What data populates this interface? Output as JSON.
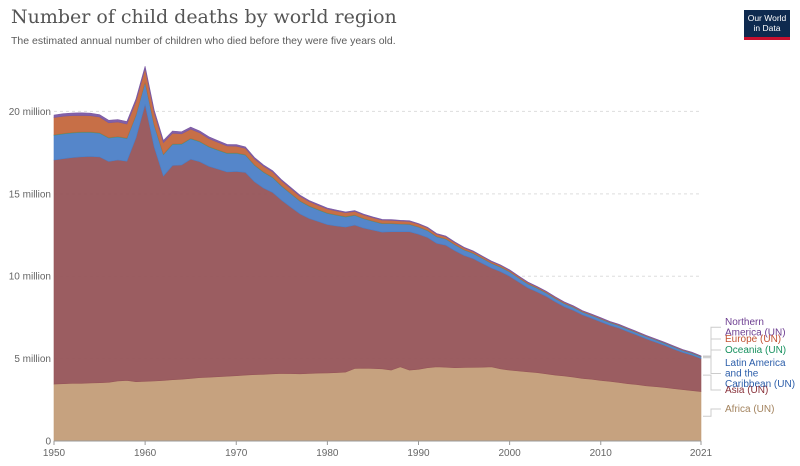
{
  "header": {
    "title": "Number of child deaths by world region",
    "subtitle": "The estimated annual number of children who died before they were five years old.",
    "logo_line1": "Our World",
    "logo_line2": "in Data"
  },
  "chart_data": {
    "type": "area",
    "stacked": true,
    "x": [
      1950,
      1951,
      1952,
      1953,
      1954,
      1955,
      1956,
      1957,
      1958,
      1959,
      1960,
      1961,
      1962,
      1963,
      1964,
      1965,
      1966,
      1967,
      1968,
      1969,
      1970,
      1971,
      1972,
      1973,
      1974,
      1975,
      1976,
      1977,
      1978,
      1979,
      1980,
      1981,
      1982,
      1983,
      1984,
      1985,
      1986,
      1987,
      1988,
      1989,
      1990,
      1991,
      1992,
      1993,
      1994,
      1995,
      1996,
      1997,
      1998,
      1999,
      2000,
      2001,
      2002,
      2003,
      2004,
      2005,
      2006,
      2007,
      2008,
      2009,
      2010,
      2011,
      2012,
      2013,
      2014,
      2015,
      2016,
      2017,
      2018,
      2019,
      2020,
      2021
    ],
    "xticks": [
      1950,
      1960,
      1970,
      1980,
      1990,
      2000,
      2010,
      2021
    ],
    "yticks": [
      0,
      5000000,
      10000000,
      15000000,
      20000000
    ],
    "ytick_labels": [
      "0",
      "5 million",
      "10 million",
      "15 million",
      "20 million"
    ],
    "xlim": [
      1950,
      2021
    ],
    "ylim": [
      0,
      23000000
    ],
    "grid": "horizontal-dashed",
    "legend_placement": "right",
    "series": [
      {
        "name": "Africa (UN)",
        "color": "#c39d78",
        "label_color": "#a3835e",
        "values": [
          3450000,
          3480000,
          3500000,
          3500000,
          3520000,
          3540000,
          3560000,
          3650000,
          3680000,
          3600000,
          3620000,
          3640000,
          3680000,
          3720000,
          3750000,
          3800000,
          3850000,
          3870000,
          3900000,
          3930000,
          3960000,
          4000000,
          4030000,
          4050000,
          4080000,
          4100000,
          4090000,
          4080000,
          4100000,
          4120000,
          4130000,
          4150000,
          4180000,
          4400000,
          4420000,
          4400000,
          4380000,
          4300000,
          4500000,
          4300000,
          4350000,
          4450000,
          4500000,
          4480000,
          4450000,
          4460000,
          4470000,
          4480000,
          4500000,
          4380000,
          4300000,
          4250000,
          4200000,
          4150000,
          4080000,
          4000000,
          3950000,
          3880000,
          3800000,
          3750000,
          3680000,
          3620000,
          3550000,
          3480000,
          3420000,
          3350000,
          3300000,
          3250000,
          3180000,
          3120000,
          3060000,
          3000000
        ]
      },
      {
        "name": "Asia (UN)",
        "color": "#965459",
        "label_color": "#883039",
        "values": [
          13600000,
          13650000,
          13700000,
          13750000,
          13750000,
          13700000,
          13400000,
          13400000,
          13300000,
          14800000,
          16800000,
          14200000,
          12400000,
          13000000,
          13000000,
          13300000,
          13100000,
          12800000,
          12600000,
          12400000,
          12400000,
          12300000,
          11700000,
          11300000,
          11000000,
          10500000,
          10100000,
          9700000,
          9400000,
          9200000,
          9000000,
          8900000,
          8800000,
          8700000,
          8500000,
          8400000,
          8300000,
          8400000,
          8200000,
          8400000,
          8200000,
          7900000,
          7500000,
          7400000,
          7100000,
          6800000,
          6600000,
          6300000,
          6000000,
          5900000,
          5700000,
          5400000,
          5100000,
          4900000,
          4700000,
          4450000,
          4200000,
          4050000,
          3850000,
          3700000,
          3550000,
          3400000,
          3300000,
          3150000,
          3000000,
          2850000,
          2700000,
          2550000,
          2400000,
          2250000,
          2150000,
          2000000
        ]
      },
      {
        "name": "Latin America and the Caribbean (UN)",
        "color": "#4c7fc7",
        "label_color": "#2c5eaa",
        "values": [
          1500000,
          1500000,
          1500000,
          1480000,
          1460000,
          1440000,
          1420000,
          1400000,
          1380000,
          1360000,
          1350000,
          1320000,
          1300000,
          1280000,
          1260000,
          1240000,
          1200000,
          1170000,
          1140000,
          1120000,
          1100000,
          1050000,
          1000000,
          950000,
          900000,
          850000,
          810000,
          770000,
          740000,
          700000,
          680000,
          650000,
          620000,
          590000,
          560000,
          530000,
          510000,
          490000,
          460000,
          440000,
          430000,
          410000,
          390000,
          370000,
          350000,
          330000,
          310000,
          300000,
          280000,
          270000,
          260000,
          240000,
          230000,
          220000,
          210000,
          200000,
          190000,
          180000,
          175000,
          170000,
          165000,
          160000,
          155000,
          150000,
          145000,
          140000,
          135000,
          130000,
          125000,
          120000,
          115000,
          110000
        ]
      },
      {
        "name": "Oceania (UN)",
        "color": "#3a9a7b",
        "label_color": "#18915f",
        "values": [
          30000,
          30000,
          30000,
          30000,
          30000,
          30000,
          30000,
          30000,
          30000,
          30000,
          30000,
          30000,
          30000,
          30000,
          30000,
          30000,
          30000,
          30000,
          30000,
          30000,
          30000,
          30000,
          30000,
          29000,
          29000,
          28000,
          28000,
          27000,
          27000,
          26000,
          26000,
          25000,
          25000,
          24000,
          24000,
          23000,
          23000,
          22000,
          22000,
          22000,
          21000,
          21000,
          21000,
          20000,
          20000,
          20000,
          20000,
          19000,
          19000,
          19000,
          19000,
          18000,
          18000,
          18000,
          18000,
          18000,
          17000,
          17000,
          17000,
          17000,
          17000,
          16000,
          16000,
          16000,
          16000,
          16000,
          16000,
          15000,
          15000,
          15000,
          15000,
          15000
        ]
      },
      {
        "name": "Europe (UN)",
        "color": "#c4673d",
        "label_color": "#c15232",
        "values": [
          1050000,
          1050000,
          1020000,
          1000000,
          980000,
          950000,
          900000,
          880000,
          850000,
          830000,
          800000,
          750000,
          700000,
          650000,
          600000,
          560000,
          520000,
          480000,
          450000,
          420000,
          400000,
          380000,
          360000,
          340000,
          320000,
          300000,
          290000,
          280000,
          270000,
          260000,
          250000,
          240000,
          230000,
          220000,
          210000,
          200000,
          190000,
          180000,
          170000,
          165000,
          160000,
          150000,
          140000,
          130000,
          120000,
          110000,
          100000,
          95000,
          90000,
          85000,
          80000,
          75000,
          70000,
          65000,
          60000,
          56000,
          52000,
          48000,
          45000,
          42000,
          40000,
          38000,
          36000,
          34000,
          32000,
          30000,
          28000,
          27000,
          26000,
          25000,
          24000,
          23000
        ]
      },
      {
        "name": "Northern America (UN)",
        "color": "#7b59a3",
        "label_color": "#6d3e91",
        "values": [
          150000,
          155000,
          155000,
          155000,
          155000,
          150000,
          150000,
          150000,
          150000,
          145000,
          145000,
          140000,
          135000,
          130000,
          125000,
          120000,
          115000,
          110000,
          105000,
          100000,
          95000,
          90000,
          85000,
          80000,
          75000,
          70000,
          67000,
          64000,
          61000,
          58000,
          55000,
          53000,
          51000,
          49000,
          47000,
          46000,
          45000,
          44000,
          43000,
          42000,
          41000,
          40000,
          39000,
          38000,
          37000,
          36000,
          35000,
          34000,
          33000,
          33000,
          32000,
          32000,
          31000,
          31000,
          30000,
          30000,
          30000,
          29000,
          29000,
          28000,
          28000,
          27000,
          27000,
          26000,
          26000,
          25000,
          25000,
          24000,
          24000,
          23000,
          23000,
          22000
        ]
      }
    ],
    "legend": [
      {
        "series": 5,
        "lines": [
          "Northern",
          "America (UN)"
        ]
      },
      {
        "series": 4,
        "lines": [
          "Europe (UN)"
        ]
      },
      {
        "series": 3,
        "lines": [
          "Oceania (UN)"
        ]
      },
      {
        "series": 2,
        "lines": [
          "Latin America",
          "and the",
          "Caribbean (UN)"
        ]
      },
      {
        "series": 1,
        "lines": [
          "Asia (UN)"
        ]
      },
      {
        "series": 0,
        "lines": [
          "Africa (UN)"
        ]
      }
    ]
  }
}
